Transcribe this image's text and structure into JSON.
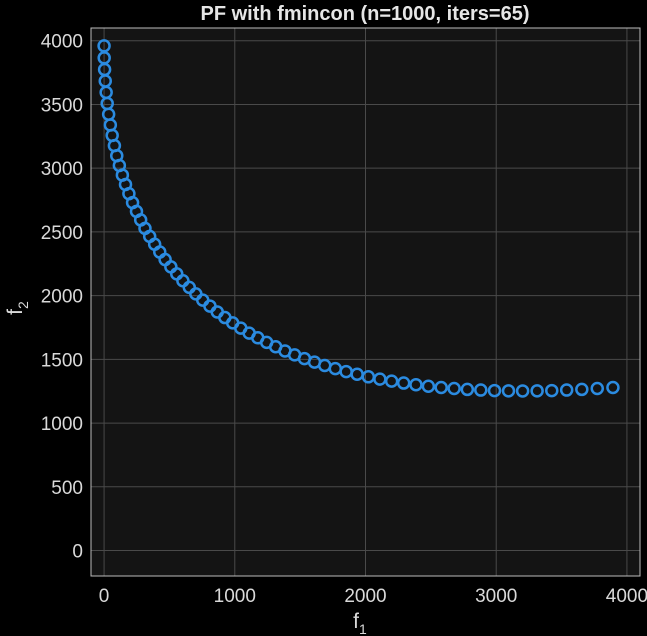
{
  "chart_data": {
    "type": "scatter",
    "title": "PF with fmincon  (n=1000, iters=65)",
    "xlabel": "f",
    "xlabel_sub": "1",
    "ylabel": "f",
    "ylabel_sub": "2",
    "xlim": [
      -100,
      4100
    ],
    "ylim": [
      -200,
      4100
    ],
    "xticks": [
      0,
      1000,
      2000,
      3000,
      4000
    ],
    "yticks": [
      0,
      500,
      1000,
      1500,
      2000,
      2500,
      3000,
      3500,
      4000
    ],
    "grid": true,
    "series": [
      {
        "marker": "circle",
        "color": "#2b8be0",
        "x": [
          0,
          1,
          4,
          9,
          16,
          24,
          35,
          48,
          62,
          79,
          97,
          117,
          140,
          164,
          190,
          218,
          248,
          280,
          313,
          349,
          387,
          426,
          467,
          511,
          556,
          603,
          652,
          702,
          755,
          810,
          866,
          924,
          984,
          1046,
          1110,
          1176,
          1244,
          1313,
          1384,
          1458,
          1533,
          1610,
          1688,
          1769,
          1852,
          1936,
          2022,
          2110,
          2200,
          2292,
          2386,
          2481,
          2579,
          2678,
          2779,
          2882,
          2987,
          3094,
          3202,
          3313,
          3425,
          3539,
          3655,
          3773,
          3893
        ],
        "y": [
          3960,
          3866,
          3774,
          3684,
          3595,
          3508,
          3423,
          3339,
          3257,
          3177,
          3098,
          3021,
          2946,
          2872,
          2800,
          2730,
          2661,
          2594,
          2528,
          2465,
          2403,
          2342,
          2283,
          2226,
          2171,
          2117,
          2065,
          2014,
          1965,
          1918,
          1872,
          1828,
          1786,
          1745,
          1706,
          1669,
          1633,
          1599,
          1566,
          1535,
          1506,
          1478,
          1452,
          1427,
          1404,
          1383,
          1363,
          1345,
          1329,
          1314,
          1301,
          1289,
          1279,
          1271,
          1264,
          1259,
          1255,
          1253,
          1252,
          1253,
          1255,
          1259,
          1264,
          1271,
          1279
        ]
      }
    ]
  }
}
